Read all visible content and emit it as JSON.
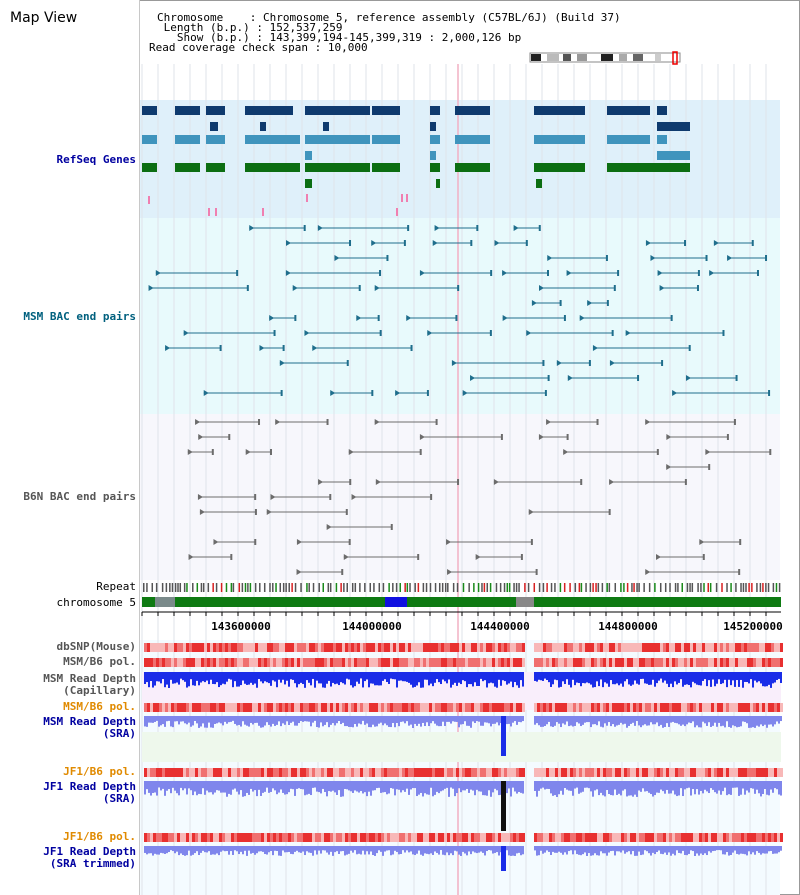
{
  "title": "Map View",
  "info": {
    "chromosome_label": "Chromosome",
    "chromosome_value": "Chromosome 5, reference assembly (C57BL/6J) (Build 37)",
    "length_label": "Length (b.p.)",
    "length_value": "152,537,259",
    "show_label": "Show (b.p.)",
    "show_value": "143,399,194-145,399,319 : 2,000,126 bp",
    "coverage_label": "Read coverage check span",
    "coverage_value": "10,000"
  },
  "tracks": {
    "refseq": "RefSeq Genes",
    "msm_bac": "MSM BAC end pairs",
    "b6n_bac": "B6N BAC end pairs",
    "repeat": "Repeat",
    "chromosome": "chromosome 5",
    "dbsnp": "dbSNP(Mouse)",
    "msm_b6_pol": "MSM/B6 pol.",
    "msm_depth_cap": "MSM Read Depth\n(Capillary)",
    "msm_b6_pol2": "MSM/B6 pol.",
    "msm_depth_sra": "MSM Read Depth\n(SRA)",
    "jf1_b6_pol": "JF1/B6 pol.",
    "jf1_depth_sra": "JF1 Read Depth\n(SRA)",
    "jf1_b6_pol2": "JF1/B6 pol.",
    "jf1_depth_trim": "JF1 Read Depth\n(SRA trimmed)"
  },
  "axis_ticks": [
    "143600000",
    "144000000",
    "144400000",
    "144800000",
    "145200000"
  ],
  "colors": {
    "refseq_bg": "#dff0fa",
    "msm_bg": "#e8fafc",
    "b6n_bg": "#f7f7fc",
    "gene_dark": "#0e3a6e",
    "gene_mid": "#3f94bd",
    "gene_green": "#0c6e12",
    "bac_teal": "#1f6e8c",
    "bac_gray": "#6c6c6c",
    "depth_blue": "#1a2de8",
    "depth_light": "#7f86ec",
    "pol_red": "#e84242",
    "label_blue": "#0000a0",
    "label_orange": "#e08a00",
    "label_teal": "#00607e"
  }
}
